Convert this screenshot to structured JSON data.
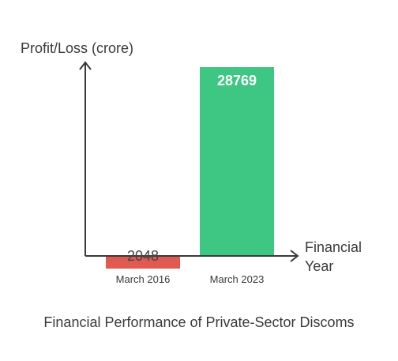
{
  "chart_data": {
    "type": "bar",
    "title": "Financial Performance of Private-Sector Discoms",
    "ylabel": "Profit/Loss (crore)",
    "xlabel_lines": [
      "Financial",
      "Year"
    ],
    "categories": [
      "March 2016",
      "March 2023"
    ],
    "values": [
      -2048,
      28769
    ],
    "data_labels": [
      "2048",
      "28769"
    ],
    "ylim": [
      -2048,
      28769
    ],
    "colors": [
      "#e05a52",
      "#3ec683"
    ],
    "data_label_colors": [
      "#444444",
      "#ffffff"
    ],
    "grid": false,
    "legend": "none"
  }
}
